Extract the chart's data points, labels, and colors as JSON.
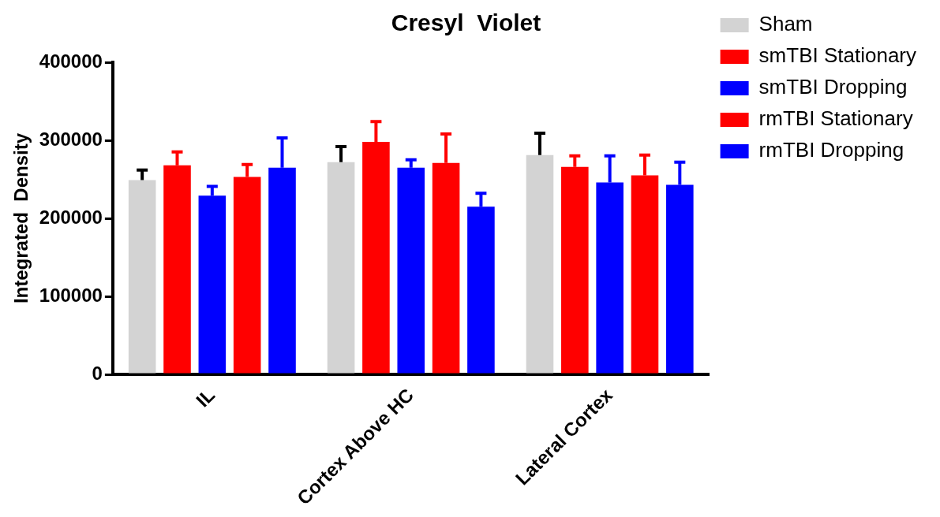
{
  "chart_data": {
    "type": "bar",
    "title": "Cresyl  Violet",
    "ylabel": "Integrated  Density",
    "categories": [
      "IL",
      "Cortex Above HC",
      "Lateral Cortex"
    ],
    "series": [
      {
        "name": "Sham",
        "color": "#d3d3d3",
        "values": [
          249000,
          272000,
          281000
        ],
        "errors": [
          [
            249000,
            262000
          ],
          [
            272000,
            292000
          ],
          [
            281000,
            309000
          ]
        ]
      },
      {
        "name": "smTBI Stationary",
        "color": "#ff0000",
        "values": [
          268000,
          298000,
          266000
        ],
        "errors": [
          [
            268000,
            285000
          ],
          [
            298000,
            324000
          ],
          [
            266000,
            280000
          ]
        ]
      },
      {
        "name": "smTBI Dropping",
        "color": "#0000ff",
        "values": [
          229000,
          265000,
          246000
        ],
        "errors": [
          [
            229000,
            241000
          ],
          [
            265000,
            275000
          ],
          [
            246000,
            280000
          ]
        ]
      },
      {
        "name": "rmTBI Stationary",
        "color": "#ff0000",
        "values": [
          253000,
          271000,
          255000
        ],
        "errors": [
          [
            253000,
            269000
          ],
          [
            271000,
            308000
          ],
          [
            255000,
            281000
          ]
        ]
      },
      {
        "name": "rmTBI Dropping",
        "color": "#0000ff",
        "values": [
          265000,
          215000,
          243000
        ],
        "errors": [
          [
            265000,
            303000
          ],
          [
            215000,
            232000
          ],
          [
            243000,
            272000
          ]
        ]
      }
    ],
    "ylim": [
      0,
      400000
    ],
    "yticks": [
      0,
      100000,
      200000,
      300000,
      400000
    ],
    "grid": false,
    "legend": "right"
  }
}
